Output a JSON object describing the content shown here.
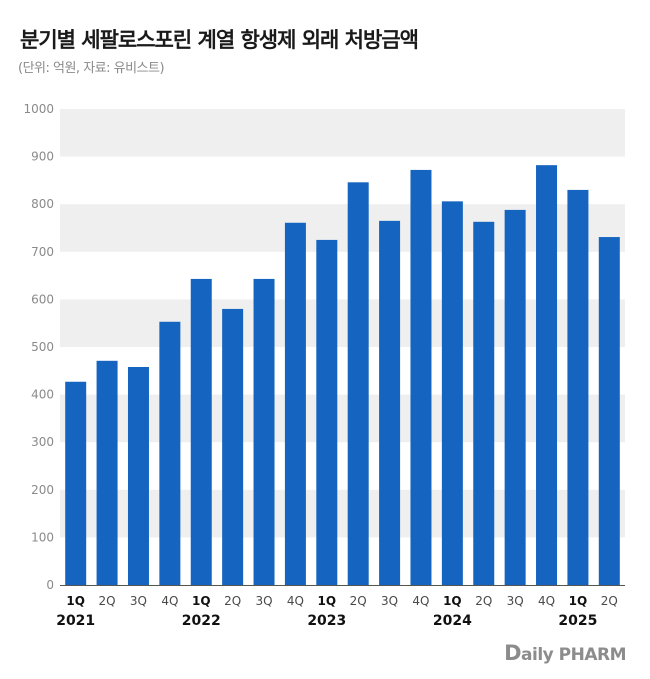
{
  "title": "분기별 세팔로스포린 계열 항생제 외래 처방금액",
  "subtitle": "(단위: 억원, 자료: 유비스트)",
  "brand": {
    "first": "D",
    "rest": "aily PHARM"
  },
  "colors": {
    "bar": "#1565c0",
    "band": "#efefef",
    "axis": "#555555",
    "tick": "#8a8a8a",
    "label": "#4a4a4a",
    "bold_label": "#111111"
  },
  "chart_data": {
    "type": "bar",
    "title": "분기별 세팔로스포린 계열 항생제 외래 처방금액",
    "ylim": [
      0,
      1000
    ],
    "yticks": [
      0,
      100,
      200,
      300,
      400,
      500,
      600,
      700,
      800,
      900,
      1000
    ],
    "grid": "alternating horizontal bands",
    "categories": [
      "1Q",
      "2Q",
      "3Q",
      "4Q",
      "1Q",
      "2Q",
      "3Q",
      "4Q",
      "1Q",
      "2Q",
      "3Q",
      "4Q",
      "1Q",
      "2Q",
      "3Q",
      "4Q",
      "1Q",
      "2Q"
    ],
    "bold_quarters": [
      0,
      4,
      8,
      12,
      16
    ],
    "years": [
      {
        "label": "2021",
        "index": 0
      },
      {
        "label": "2022",
        "index": 4
      },
      {
        "label": "2023",
        "index": 8
      },
      {
        "label": "2024",
        "index": 12
      },
      {
        "label": "2025",
        "index": 16
      }
    ],
    "values": [
      427,
      471,
      458,
      553,
      643,
      580,
      643,
      761,
      725,
      846,
      765,
      872,
      806,
      763,
      788,
      882,
      830,
      731
    ]
  }
}
